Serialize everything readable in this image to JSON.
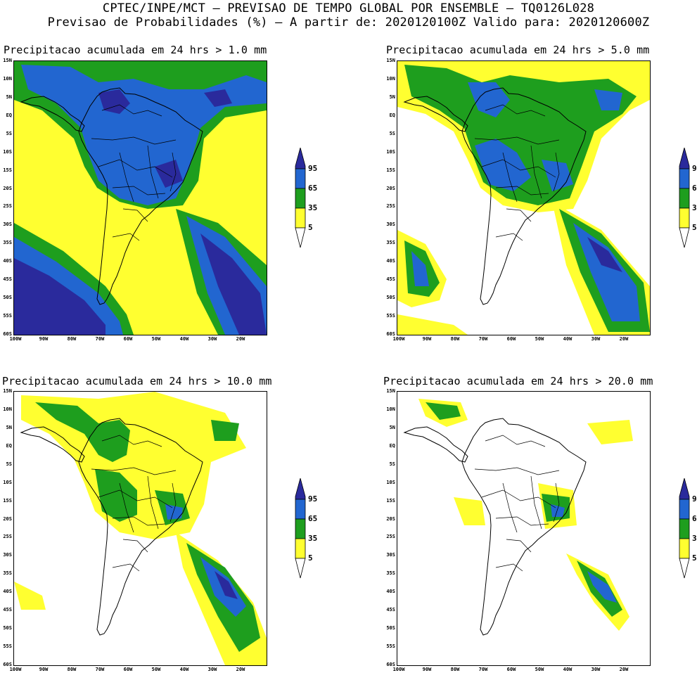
{
  "header": {
    "line1": "CPTEC/INPE/MCT – PREVISAO DE TEMPO GLOBAL POR ENSEMBLE – TQ0126L028",
    "line2": "Previsao de Probabilidades (%) –  A partir de: 2020120100Z  Valido para: 2020120600Z"
  },
  "colors": {
    "p5": "#ffff30",
    "p35": "#1e9e1e",
    "p65": "#2266d0",
    "p95": "#2a2a9c"
  },
  "axes": {
    "lat_labels": [
      "15N",
      "10N",
      "5N",
      "EQ",
      "5S",
      "10S",
      "15S",
      "20S",
      "25S",
      "30S",
      "35S",
      "40S",
      "45S",
      "50S",
      "55S",
      "60S"
    ],
    "lon_labels": [
      "100W",
      "90W",
      "80W",
      "70W",
      "60W",
      "50W",
      "40W",
      "30W",
      "20W"
    ]
  },
  "legend": {
    "levels": [
      "95",
      "65",
      "35",
      "5"
    ]
  },
  "panels": [
    {
      "title": "Precipitacao acumulada em 24 hrs > 1.0 mm"
    },
    {
      "title": "Precipitacao acumulada em 24 hrs > 5.0 mm"
    },
    {
      "title": "Precipitacao acumulada em 24 hrs > 10.0 mm"
    },
    {
      "title": "Precipitacao acumulada em 24 hrs > 20.0 mm"
    }
  ]
}
